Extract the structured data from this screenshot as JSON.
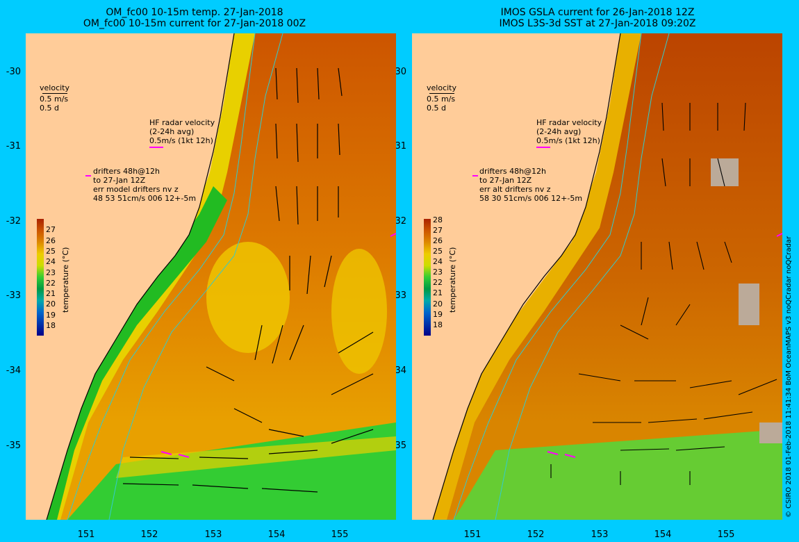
{
  "left": {
    "title1": "OM_fc00 10-15m temp. 27-Jan-2018",
    "title2": "OM_fc00 10-15m current for 27-Jan-2018 00Z",
    "velocity_label": "velocity",
    "velocity_scale1": "0.5 m/s",
    "velocity_scale2": "0.5 d",
    "hf_title": "HF radar velocity",
    "hf_avg": "(2-24h avg)",
    "hf_scale": "0.5m/s (1kt 12h)",
    "drifters1": "drifters 48h@12h",
    "drifters2": "to 27-Jan 12Z",
    "drifters3": "err model drifters nv z",
    "drifters4": "48 53 51cm/s 006 12+-5m",
    "colorbar_title": "temperature (°C)",
    "colorbar_ticks": [
      "27",
      "26",
      "25",
      "24",
      "23",
      "22",
      "21",
      "20",
      "19",
      "18"
    ]
  },
  "right": {
    "title1": "IMOS GSLA current for 26-Jan-2018 12Z",
    "title2": "IMOS L3S-3d SST at 27-Jan-2018 09:20Z",
    "velocity_label": "velocity",
    "velocity_scale1": "0.5 m/s",
    "velocity_scale2": "0.5 d",
    "hf_title": "HF radar velocity",
    "hf_avg": "(2-24h avg)",
    "hf_scale": "0.5m/s (1kt 12h)",
    "drifters1": "drifters 48h@12h",
    "drifters2": "to 27-Jan 12Z",
    "drifters3": "err alt drifters nv z",
    "drifters4": "58 30 51cm/s 006 12+-5m",
    "colorbar_title": "temperature (°C)",
    "colorbar_ticks": [
      "28",
      "27",
      "26",
      "25",
      "24",
      "23",
      "22",
      "21",
      "20",
      "19",
      "18"
    ]
  },
  "y_ticks": [
    "-30",
    "-31",
    "-32",
    "-33",
    "-34",
    "-35"
  ],
  "x_ticks": [
    "151",
    "152",
    "153",
    "154",
    "155"
  ],
  "credit": "© CSIRO 2018  01-Feb-2018 11:41:34 BoM OceanMAPS v3 noQCradar noQCradar",
  "colors": {
    "background": "#00ccff",
    "land": "#ffcc99",
    "arrow": "#000000",
    "hf_arrow": "#ff00ff",
    "contour": "#33cccc"
  }
}
